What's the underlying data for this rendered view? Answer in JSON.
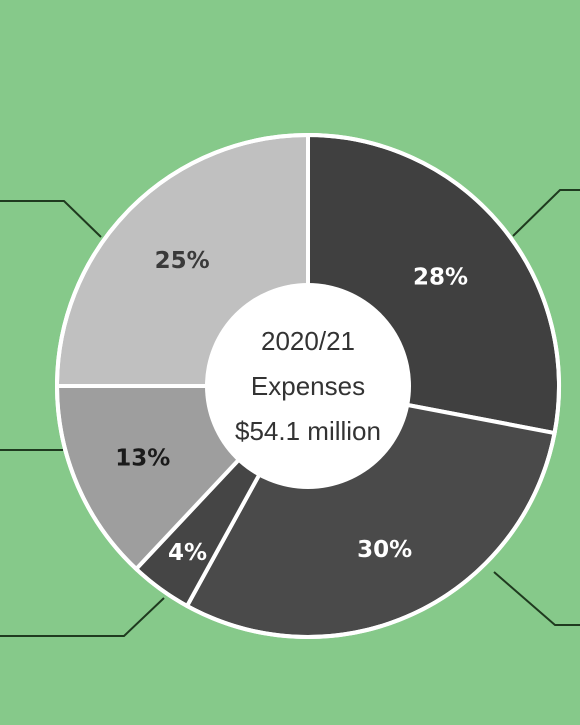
{
  "chart_data": {
    "type": "pie",
    "center_label": [
      "2020/21",
      "Expenses",
      "$54.1 million"
    ],
    "slices": [
      {
        "value": 28,
        "label": "28%",
        "color": "#404040",
        "label_color": "#ffffff"
      },
      {
        "value": 30,
        "label": "30%",
        "color": "#4a4a4a",
        "label_color": "#ffffff"
      },
      {
        "value": 4,
        "label": "4%",
        "color": "#454545",
        "label_color": "#ffffff"
      },
      {
        "value": 13,
        "label": "13%",
        "color": "#9e9e9e",
        "label_color": "#1a1a1a"
      },
      {
        "value": 25,
        "label": "25%",
        "color": "#c0c0c0",
        "label_color": "#3a3a3a"
      }
    ]
  },
  "colors": {
    "background": "#86c98a",
    "divider": "#ffffff",
    "leader_line": "#1f3a1f",
    "center_fill": "#ffffff"
  }
}
